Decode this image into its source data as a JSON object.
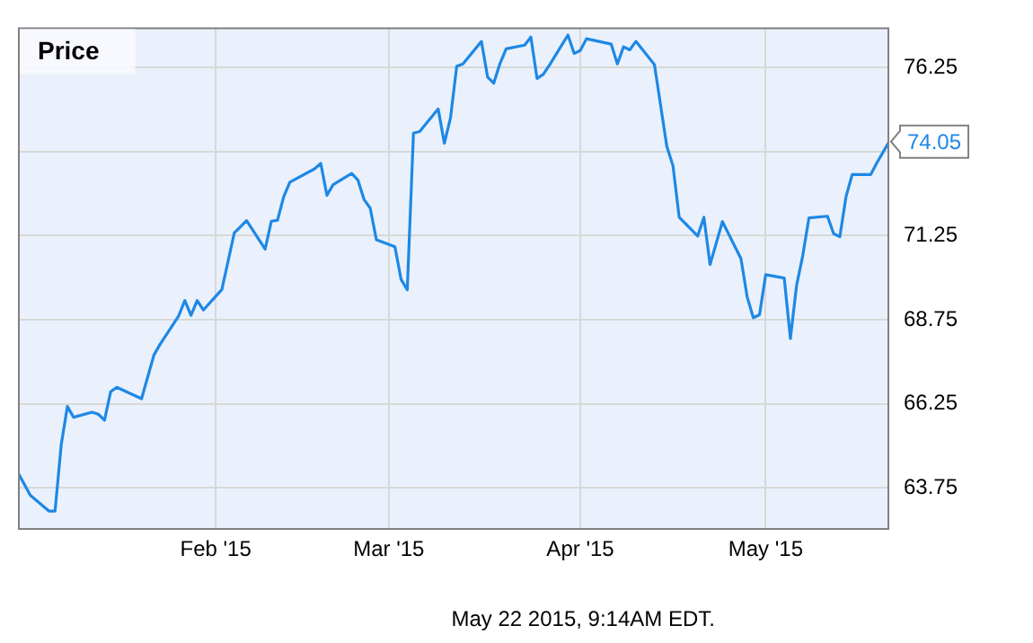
{
  "chart_data": {
    "type": "line",
    "title": "Price",
    "annotations": [
      "May 22 2015, 9:14AM EDT."
    ],
    "x": [
      "2014-12-31",
      "2015-01-02",
      "2015-01-05",
      "2015-01-06",
      "2015-01-07",
      "2015-01-08",
      "2015-01-09",
      "2015-01-12",
      "2015-01-13",
      "2015-01-14",
      "2015-01-15",
      "2015-01-16",
      "2015-01-20",
      "2015-01-22",
      "2015-01-23",
      "2015-01-26",
      "2015-01-27",
      "2015-01-28",
      "2015-01-29",
      "2015-01-30",
      "2015-02-02",
      "2015-02-04",
      "2015-02-06",
      "2015-02-09",
      "2015-02-10",
      "2015-02-11",
      "2015-02-12",
      "2015-02-13",
      "2015-02-17",
      "2015-02-18",
      "2015-02-19",
      "2015-02-20",
      "2015-02-23",
      "2015-02-24",
      "2015-02-25",
      "2015-02-26",
      "2015-02-27",
      "2015-03-02",
      "2015-03-03",
      "2015-03-04",
      "2015-03-05",
      "2015-03-06",
      "2015-03-09",
      "2015-03-10",
      "2015-03-11",
      "2015-03-12",
      "2015-03-13",
      "2015-03-16",
      "2015-03-17",
      "2015-03-18",
      "2015-03-19",
      "2015-03-20",
      "2015-03-23",
      "2015-03-24",
      "2015-03-25",
      "2015-03-26",
      "2015-03-27",
      "2015-03-30",
      "2015-03-31",
      "2015-04-01",
      "2015-04-02",
      "2015-04-06",
      "2015-04-07",
      "2015-04-08",
      "2015-04-09",
      "2015-04-10",
      "2015-04-13",
      "2015-04-15",
      "2015-04-16",
      "2015-04-17",
      "2015-04-20",
      "2015-04-21",
      "2015-04-22",
      "2015-04-24",
      "2015-04-27",
      "2015-04-28",
      "2015-04-29",
      "2015-04-30",
      "2015-05-01",
      "2015-05-04",
      "2015-05-05",
      "2015-05-06",
      "2015-05-07",
      "2015-05-08",
      "2015-05-11",
      "2015-05-12",
      "2015-05-13",
      "2015-05-14",
      "2015-05-15",
      "2015-05-18",
      "2015-05-19",
      "2015-05-21"
    ],
    "series": [
      {
        "color": "#1e88e5",
        "values": [
          64.2,
          63.53,
          63.06,
          63.06,
          65.03,
          66.17,
          65.85,
          66.0,
          65.94,
          65.76,
          66.61,
          66.74,
          66.4,
          67.7,
          68.02,
          68.86,
          69.32,
          68.88,
          69.32,
          69.04,
          69.65,
          71.33,
          71.7,
          70.85,
          71.68,
          71.71,
          72.41,
          72.84,
          73.24,
          73.4,
          72.45,
          72.77,
          73.1,
          72.91,
          72.33,
          72.07,
          71.13,
          70.92,
          69.95,
          69.64,
          74.3,
          74.35,
          75.02,
          74.0,
          74.76,
          76.29,
          76.36,
          77.03,
          75.97,
          75.79,
          76.37,
          76.81,
          76.92,
          77.16,
          75.93,
          76.05,
          76.32,
          77.22,
          76.67,
          76.76,
          77.11,
          76.95,
          76.36,
          76.87,
          76.78,
          77.03,
          76.34,
          73.91,
          73.33,
          71.8,
          71.24,
          71.8,
          70.39,
          71.67,
          70.57,
          69.43,
          68.81,
          68.9,
          70.09,
          69.99,
          68.19,
          69.77,
          70.66,
          71.78,
          71.83,
          71.31,
          71.22,
          72.41,
          73.07,
          73.07,
          73.42,
          74.05
        ],
        "value_labels": [
          null,
          null,
          null,
          null,
          null,
          null,
          null,
          null,
          null,
          null,
          null,
          null,
          null,
          null,
          null,
          null,
          null,
          null,
          null,
          null,
          null,
          null,
          null,
          null,
          null,
          null,
          null,
          null,
          null,
          null,
          null,
          null,
          null,
          null,
          null,
          null,
          null,
          null,
          null,
          null,
          null,
          null,
          null,
          null,
          null,
          null,
          null,
          null,
          null,
          null,
          null,
          null,
          null,
          null,
          null,
          null,
          null,
          null,
          null,
          null,
          null,
          null,
          null,
          null,
          null,
          null,
          null,
          null,
          null,
          null,
          null,
          null,
          null,
          null,
          null,
          null,
          null,
          null,
          null,
          null,
          null,
          null,
          null,
          null,
          null,
          null,
          null,
          null,
          null,
          null,
          null,
          "74.05"
        ]
      }
    ],
    "xlim": [
      "2014-12-31",
      "2015-05-21"
    ],
    "xticks": [
      {
        "value": "2015-02-01",
        "label": "Feb '15"
      },
      {
        "value": "2015-03-01",
        "label": "Mar '15"
      },
      {
        "value": "2015-04-01",
        "label": "Apr '15"
      },
      {
        "value": "2015-05-01",
        "label": "May '15"
      }
    ],
    "ylim": [
      62.5,
      77.45
    ],
    "yticks": [
      63.75,
      66.25,
      68.75,
      71.25,
      73.75,
      76.25
    ],
    "grid": true,
    "legend": false,
    "marker": "none",
    "line_style": "solid"
  }
}
